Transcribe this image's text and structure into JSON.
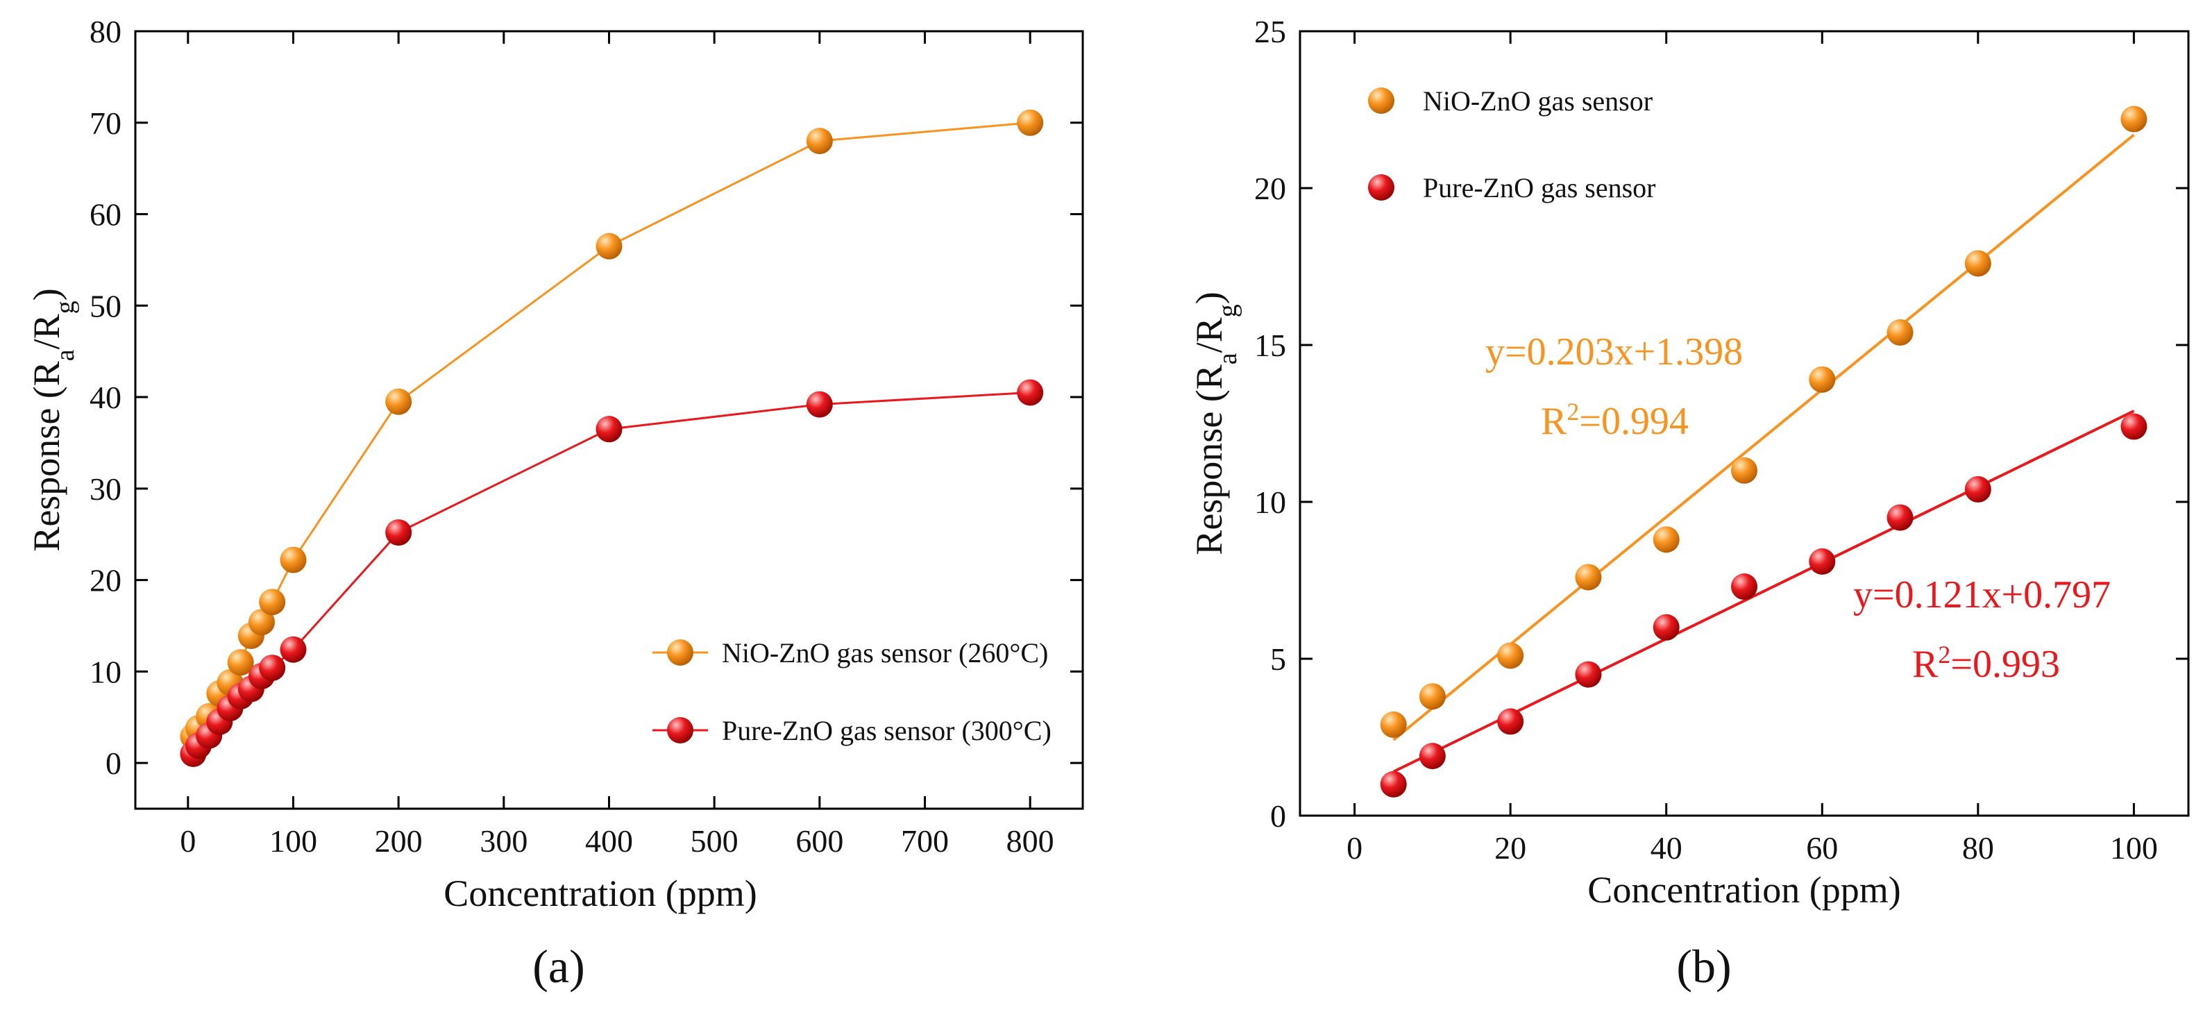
{
  "chart_data": [
    {
      "type": "line",
      "panel_label": "(a)",
      "xlabel": "Concentration (ppm)",
      "ylabel_main": "Response (R",
      "ylabel_sub1": "a",
      "ylabel_mid": "/R",
      "ylabel_sub2": "g",
      "ylabel_end": ")",
      "xlim": [
        -50,
        850
      ],
      "ylim": [
        -5,
        80
      ],
      "xticks": [
        0,
        100,
        200,
        300,
        400,
        500,
        600,
        700,
        800
      ],
      "yticks": [
        0,
        10,
        20,
        30,
        40,
        50,
        60,
        70,
        80
      ],
      "legend_position": "lower-right",
      "series": [
        {
          "name": "NiO-ZnO gas sensor (260°C)",
          "color": "#f7931e",
          "x": [
            5,
            10,
            20,
            30,
            40,
            50,
            60,
            70,
            80,
            100,
            200,
            400,
            600,
            800
          ],
          "y": [
            2.9,
            3.8,
            5.1,
            7.6,
            8.8,
            11.0,
            13.9,
            15.4,
            17.6,
            22.2,
            39.5,
            56.5,
            68.0,
            70.0
          ]
        },
        {
          "name": "Pure-ZnO gas sensor (300°C)",
          "color": "#e8181d",
          "x": [
            5,
            10,
            20,
            30,
            40,
            50,
            60,
            70,
            80,
            100,
            200,
            400,
            600,
            800
          ],
          "y": [
            1.0,
            1.9,
            3.0,
            4.5,
            6.0,
            7.3,
            8.1,
            9.5,
            10.4,
            12.4,
            25.2,
            36.5,
            39.2,
            40.5
          ]
        }
      ]
    },
    {
      "type": "scatter",
      "panel_label": "(b)",
      "xlabel": "Concentration (ppm)",
      "ylabel_main": "Response (R",
      "ylabel_sub1": "a",
      "ylabel_mid": "/R",
      "ylabel_sub2": "g",
      "ylabel_end": ")",
      "xlim": [
        -7,
        107
      ],
      "ylim": [
        0,
        25
      ],
      "xticks": [
        0,
        20,
        40,
        60,
        80,
        100
      ],
      "yticks": [
        0,
        5,
        10,
        15,
        20,
        25
      ],
      "legend_position": "top-left",
      "series": [
        {
          "name": "NiO-ZnO gas sensor",
          "color": "#f7931e",
          "x": [
            5,
            10,
            20,
            30,
            40,
            50,
            60,
            70,
            80,
            100
          ],
          "y": [
            2.9,
            3.8,
            5.1,
            7.6,
            8.8,
            11.0,
            13.9,
            15.4,
            17.6,
            22.2
          ],
          "fit": {
            "slope": 0.203,
            "intercept": 1.398,
            "x_range": [
              5,
              100
            ]
          },
          "equation": "y=0.203x+1.398",
          "r2_prefix": "R",
          "r2_sup": "2",
          "r2_value": "=0.994"
        },
        {
          "name": "Pure-ZnO gas sensor",
          "color": "#e8181d",
          "x": [
            5,
            10,
            20,
            30,
            40,
            50,
            60,
            70,
            80,
            100
          ],
          "y": [
            1.0,
            1.9,
            3.0,
            4.5,
            6.0,
            7.3,
            8.1,
            9.5,
            10.4,
            12.4
          ],
          "fit": {
            "slope": 0.121,
            "intercept": 0.797,
            "x_range": [
              5,
              100
            ]
          },
          "equation": "y=0.121x+0.797",
          "r2_prefix": "R",
          "r2_sup": "2",
          "r2_value": "=0.993"
        }
      ]
    }
  ]
}
